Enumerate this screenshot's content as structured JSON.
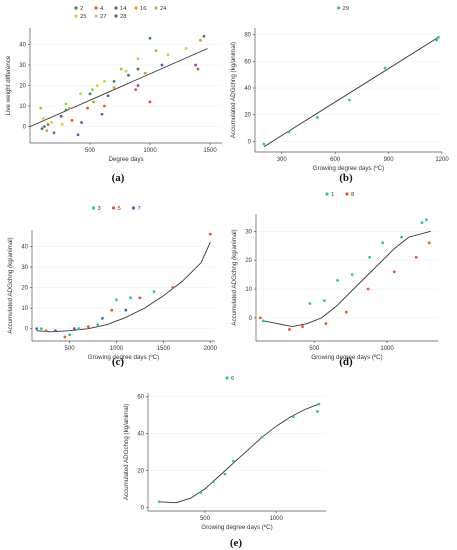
{
  "chart_data": [
    {
      "tag": "(a)",
      "type": "scatter",
      "xlabel": "Degree days",
      "ylabel": "Live weight difference",
      "xlim": [
        0,
        1600
      ],
      "ylim": [
        -8,
        48
      ],
      "xticks": [
        500,
        1000,
        1500
      ],
      "yticks": [
        0,
        10,
        20,
        30,
        40
      ],
      "legend_position": "top",
      "fit": {
        "kind": "linear",
        "x": [
          0,
          1480
        ],
        "y": [
          0,
          38
        ]
      },
      "series": [
        {
          "name": "2",
          "color": "#2e8b57",
          "points": [
            [
              120,
              0
            ],
            [
              300,
              8
            ],
            [
              500,
              16
            ],
            [
              700,
              22
            ],
            [
              900,
              28
            ],
            [
              1000,
              43
            ],
            [
              1450,
              44
            ]
          ]
        },
        {
          "name": "4",
          "color": "#e8572a",
          "points": [
            [
              150,
              1
            ],
            [
              350,
              3
            ],
            [
              480,
              9
            ],
            [
              620,
              10
            ],
            [
              880,
              18
            ],
            [
              1000,
              12
            ],
            [
              1400,
              28
            ]
          ]
        },
        {
          "name": "14",
          "color": "#4a5fae",
          "points": [
            [
              100,
              -1
            ],
            [
              260,
              5
            ],
            [
              430,
              2
            ],
            [
              650,
              15
            ],
            [
              820,
              25
            ],
            [
              1100,
              30
            ]
          ]
        },
        {
          "name": "16",
          "color": "#d2a02a",
          "points": [
            [
              140,
              -2
            ],
            [
              330,
              9
            ],
            [
              530,
              12
            ],
            [
              700,
              19
            ],
            [
              960,
              26
            ],
            [
              1420,
              42
            ]
          ]
        },
        {
          "name": "24",
          "color": "#8fcf3a",
          "points": [
            [
              90,
              9
            ],
            [
              300,
              11
            ],
            [
              520,
              18
            ],
            [
              760,
              28
            ],
            [
              1050,
              37
            ]
          ]
        },
        {
          "name": "25",
          "color": "#f2c12e",
          "points": [
            [
              110,
              4
            ],
            [
              270,
              1
            ],
            [
              560,
              20
            ],
            [
              800,
              27
            ],
            [
              1150,
              35
            ]
          ]
        },
        {
          "name": "27",
          "color": "#bcd63a",
          "points": [
            [
              180,
              2
            ],
            [
              420,
              16
            ],
            [
              620,
              22
            ],
            [
              900,
              33
            ],
            [
              1300,
              38
            ]
          ]
        },
        {
          "name": "28",
          "color": "#7a4bb0",
          "points": [
            [
              200,
              -3
            ],
            [
              400,
              -4
            ],
            [
              600,
              6
            ],
            [
              900,
              20
            ],
            [
              1380,
              30
            ]
          ]
        }
      ]
    },
    {
      "tag": "(b)",
      "type": "scatter",
      "xlabel": "Growing degree days (ºC)",
      "ylabel": "Accumulated ADGchng (kg/animal)",
      "xlim": [
        150,
        1200
      ],
      "ylim": [
        -8,
        85
      ],
      "xticks": [
        300,
        600,
        900,
        1200
      ],
      "yticks": [
        0,
        20,
        40,
        60,
        80
      ],
      "legend_position": "top",
      "fit": {
        "kind": "linear",
        "x": [
          200,
          1180
        ],
        "y": [
          -4,
          78
        ]
      },
      "series": [
        {
          "name": "29",
          "color": "#2ec4a0",
          "points": [
            [
              200,
              -2
            ],
            [
              340,
              7
            ],
            [
              500,
              18
            ],
            [
              680,
              31
            ],
            [
              880,
              55
            ],
            [
              1170,
              76
            ],
            [
              1180,
              78
            ]
          ]
        }
      ]
    },
    {
      "tag": "(c)",
      "type": "scatter",
      "xlabel": "Growing degree days (ºC)",
      "ylabel": "Accumulated ADGchng (kg/animal)",
      "xlim": [
        100,
        2050
      ],
      "ylim": [
        -6,
        48
      ],
      "xticks": [
        500,
        1000,
        1500,
        2000
      ],
      "yticks": [
        0,
        10,
        20,
        30,
        40
      ],
      "legend_position": "top",
      "fit": {
        "kind": "curve",
        "x": [
          150,
          300,
          500,
          700,
          900,
          1100,
          1300,
          1500,
          1700,
          1900,
          2000
        ],
        "y": [
          -1,
          -1.5,
          -1,
          0,
          2,
          5.5,
          10,
          16,
          23,
          32,
          42
        ]
      },
      "series": [
        {
          "name": "3",
          "color": "#2ec4a0",
          "points": [
            [
              200,
              0
            ],
            [
              500,
              -3
            ],
            [
              600,
              0
            ],
            [
              800,
              2
            ],
            [
              1000,
              14
            ],
            [
              1150,
              15
            ],
            [
              1400,
              18
            ]
          ]
        },
        {
          "name": "5",
          "color": "#e8572a",
          "points": [
            [
              250,
              -1
            ],
            [
              450,
              -4
            ],
            [
              700,
              1
            ],
            [
              950,
              9
            ],
            [
              1250,
              15
            ],
            [
              1600,
              20
            ],
            [
              2000,
              46
            ]
          ]
        },
        {
          "name": "7",
          "color": "#4a5fae",
          "points": [
            [
              150,
              0
            ],
            [
              350,
              -1
            ],
            [
              550,
              0
            ],
            [
              850,
              5
            ],
            [
              1100,
              9
            ]
          ]
        }
      ]
    },
    {
      "tag": "(d)",
      "type": "scatter",
      "xlabel": "Growing degree days (ºC)",
      "ylabel": "Accumulated ADGchng (kg/animal)",
      "xlim": [
        100,
        1350
      ],
      "ylim": [
        -8,
        36
      ],
      "xticks": [
        500,
        1000
      ],
      "yticks": [
        0,
        10,
        20,
        30
      ],
      "legend_position": "top",
      "fit": {
        "kind": "curve",
        "x": [
          150,
          250,
          350,
          450,
          550,
          650,
          750,
          850,
          950,
          1050,
          1150,
          1300
        ],
        "y": [
          -1,
          -2,
          -3,
          -2,
          0,
          4,
          9,
          14,
          19,
          24,
          28,
          30
        ]
      },
      "series": [
        {
          "name": "1",
          "color": "#2ec4a0",
          "points": [
            [
              150,
              -1
            ],
            [
              470,
              5
            ],
            [
              570,
              6
            ],
            [
              660,
              13
            ],
            [
              760,
              15
            ],
            [
              880,
              21
            ],
            [
              970,
              26
            ],
            [
              1100,
              28
            ],
            [
              1240,
              33
            ],
            [
              1270,
              34
            ]
          ]
        },
        {
          "name": "8",
          "color": "#e8572a",
          "points": [
            [
              130,
              0
            ],
            [
              330,
              -4
            ],
            [
              420,
              -3
            ],
            [
              580,
              -2
            ],
            [
              720,
              2
            ],
            [
              870,
              10
            ],
            [
              1050,
              16
            ],
            [
              1200,
              21
            ],
            [
              1290,
              26
            ]
          ]
        }
      ]
    },
    {
      "tag": "(e)",
      "type": "scatter",
      "xlabel": "Growing degree days (ºC)",
      "ylabel": "Accumulated ADGchng (kg/animal)",
      "xlim": [
        100,
        1350
      ],
      "ylim": [
        -2,
        62
      ],
      "xticks": [
        500,
        1000
      ],
      "yticks": [
        0,
        20,
        40,
        60
      ],
      "legend_position": "top",
      "fit": {
        "kind": "curve",
        "x": [
          180,
          300,
          400,
          500,
          600,
          700,
          800,
          900,
          1000,
          1100,
          1200,
          1300
        ],
        "y": [
          3,
          2.5,
          5,
          10,
          17,
          24,
          31,
          38,
          44,
          49,
          53,
          56
        ]
      },
      "series": [
        {
          "name": "6",
          "color": "#2ec4a0",
          "points": [
            [
              180,
              3
            ],
            [
              470,
              8
            ],
            [
              560,
              14
            ],
            [
              640,
              18
            ],
            [
              700,
              25
            ],
            [
              900,
              38
            ],
            [
              1120,
              49
            ],
            [
              1290,
              52
            ],
            [
              1300,
              56
            ]
          ]
        }
      ]
    }
  ]
}
